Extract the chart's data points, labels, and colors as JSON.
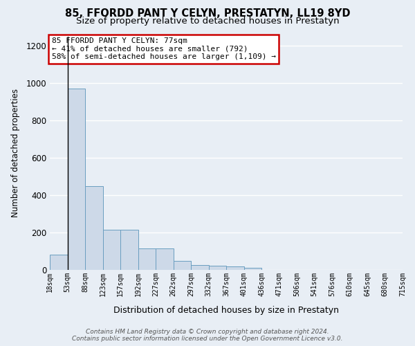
{
  "title": "85, FFORDD PANT Y CELYN, PRESTATYN, LL19 8YD",
  "subtitle": "Size of property relative to detached houses in Prestatyn",
  "xlabel": "Distribution of detached houses by size in Prestatyn",
  "ylabel": "Number of detached properties",
  "bar_values": [
    80,
    970,
    450,
    215,
    215,
    115,
    115,
    50,
    25,
    22,
    20,
    12,
    0,
    0,
    0,
    0,
    0,
    0,
    0,
    0
  ],
  "bin_labels": [
    "18sqm",
    "53sqm",
    "88sqm",
    "123sqm",
    "157sqm",
    "192sqm",
    "227sqm",
    "262sqm",
    "297sqm",
    "332sqm",
    "367sqm",
    "401sqm",
    "436sqm",
    "471sqm",
    "506sqm",
    "541sqm",
    "576sqm",
    "610sqm",
    "645sqm",
    "680sqm",
    "715sqm"
  ],
  "bar_color": "#cdd9e8",
  "bar_edge_color": "#6a9ec0",
  "annotation_box_color": "#ffffff",
  "annotation_box_edge": "#cc0000",
  "annotation_text": "85 FFORDD PANT Y CELYN: 77sqm\n← 41% of detached houses are smaller (792)\n58% of semi-detached houses are larger (1,109) →",
  "vline_x": 1,
  "ylim": [
    0,
    1250
  ],
  "yticks": [
    0,
    200,
    400,
    600,
    800,
    1000,
    1200
  ],
  "bg_color": "#e8eef5",
  "plot_bg_color": "#e8eef5",
  "grid_color": "#ffffff",
  "footer_text": "Contains HM Land Registry data © Crown copyright and database right 2024.\nContains public sector information licensed under the Open Government Licence v3.0.",
  "title_fontsize": 10.5,
  "subtitle_fontsize": 9.5
}
